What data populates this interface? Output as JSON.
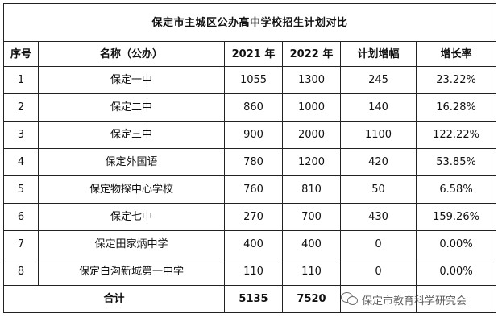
{
  "title": "保定市主城区公办高中学校招生计划对比",
  "headers": {
    "index": "序号",
    "name": "名称（公办）",
    "y2021": "2021 年",
    "y2022": "2022 年",
    "increase": "计划增幅",
    "rate": "增长率"
  },
  "rows": [
    {
      "index": "1",
      "name": "保定一中",
      "y2021": "1055",
      "y2022": "1300",
      "increase": "245",
      "rate": "23.22%"
    },
    {
      "index": "2",
      "name": "保定二中",
      "y2021": "860",
      "y2022": "1000",
      "increase": "140",
      "rate": "16.28%"
    },
    {
      "index": "3",
      "name": "保定三中",
      "y2021": "900",
      "y2022": "2000",
      "increase": "1100",
      "rate": "122.22%"
    },
    {
      "index": "4",
      "name": "保定外国语",
      "y2021": "780",
      "y2022": "1200",
      "increase": "420",
      "rate": "53.85%"
    },
    {
      "index": "5",
      "name": "保定物探中心学校",
      "y2021": "760",
      "y2022": "810",
      "increase": "50",
      "rate": "6.58%"
    },
    {
      "index": "6",
      "name": "保定七中",
      "y2021": "270",
      "y2022": "700",
      "increase": "430",
      "rate": "159.26%"
    },
    {
      "index": "7",
      "name": "保定田家炳中学",
      "y2021": "400",
      "y2022": "400",
      "increase": "0",
      "rate": "0.00%"
    },
    {
      "index": "8",
      "name": "保定白沟新城第一中学",
      "y2021": "110",
      "y2022": "110",
      "increase": "0",
      "rate": "0.00%"
    }
  ],
  "total": {
    "label": "合计",
    "y2021": "5135",
    "y2022": "7520"
  },
  "watermark": {
    "icon": "wechat-icon",
    "text": "保定市教育科学研究会"
  }
}
